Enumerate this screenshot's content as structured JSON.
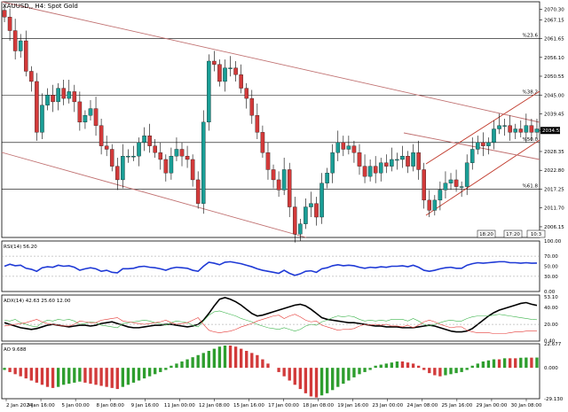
{
  "title": "XAUUSD,, H4:  Spot Gold",
  "colors": {
    "bull": "#1a9e96",
    "bear": "#d23a3a",
    "channel": "#c0392b",
    "channel_light": "#c07070",
    "level": "#000000",
    "rsi": "#1f3ad6",
    "adx": "#000000",
    "plus_di": "#3cb44b",
    "minus_di": "#e53935",
    "ao_up": "#2e9e2e",
    "ao_down": "#d23a3a",
    "price_tag_bg": "#000000",
    "price_tag_text": "#ffffff"
  },
  "chart_data": [
    {
      "type": "candlestick",
      "title": "XAUUSD,, H4:  Spot Gold",
      "ylim": [
        2003.0,
        2072.5
      ],
      "y_ticks": [
        "2070.30",
        "2067.15",
        "2061.65",
        "2056.10",
        "2050.55",
        "2045.00",
        "2039.45",
        "2034.55",
        "2028.35",
        "2022.80",
        "2017.25",
        "2011.70",
        "2006.15"
      ],
      "current_price": "2034.55",
      "x_ticks": [
        "2 Jan 2024",
        "3 Jan 16:00",
        "5 Jan 00:00",
        "8 Jan 08:00",
        "9 Jan 16:00",
        "11 Jan 00:00",
        "12 Jan 08:00",
        "15 Jan 16:00",
        "17 Jan 00:00",
        "18 Jan 08:00",
        "19 Jan 16:00",
        "23 Jan 00:00",
        "24 Jan 08:00",
        "25 Jan 16:00",
        "29 Jan 00:00",
        "30 Jan 08:00"
      ],
      "horizontal_levels": [
        {
          "label": "%23.6",
          "price": 2061.65
        },
        {
          "label": "%38.2",
          "price": 2045.0
        },
        {
          "label": "%50.0",
          "price": 2031.0
        },
        {
          "label": "%61.8",
          "price": 2017.25
        }
      ],
      "time_markers": [
        "18:20",
        "17:20",
        "10:3"
      ],
      "closes": [
        2068,
        2064,
        2058,
        2061,
        2052,
        2049,
        2034,
        2042,
        2045,
        2043,
        2047,
        2044,
        2046,
        2043,
        2037,
        2039,
        2041,
        2036,
        2030,
        2029,
        2024,
        2020,
        2027,
        2027,
        2027,
        2031,
        2033,
        2030,
        2028,
        2026,
        2022,
        2027,
        2029,
        2027,
        2026,
        2020,
        2013,
        2037,
        2055,
        2054,
        2049,
        2053,
        2053,
        2051,
        2047,
        2044,
        2039,
        2034,
        2028,
        2023,
        2020,
        2017,
        2023,
        2012,
        2004,
        2007,
        2012,
        2013,
        2009,
        2019,
        2022,
        2028,
        2031,
        2029,
        2030,
        2028,
        2024,
        2021,
        2024,
        2022,
        2025,
        2024,
        2026,
        2026,
        2027,
        2024,
        2028,
        2023,
        2014,
        2011,
        2014,
        2017,
        2019,
        2020,
        2018,
        2018,
        2025,
        2029,
        2031,
        2030,
        2031,
        2035,
        2036,
        2036,
        2034,
        2035,
        2034,
        2036,
        2034,
        2035
      ]
    },
    {
      "type": "line",
      "title": "RSI(14) 56.20",
      "ylim": [
        0,
        100
      ],
      "y_ticks": [
        "100.00",
        "70.00",
        "50.00",
        "30.00",
        "0.00"
      ],
      "series": [
        {
          "name": "RSI(14)",
          "values": [
            50,
            54,
            51,
            52,
            46,
            44,
            40,
            47,
            49,
            48,
            52,
            50,
            51,
            48,
            42,
            45,
            47,
            45,
            40,
            42,
            38,
            37,
            45,
            45,
            46,
            49,
            50,
            48,
            47,
            45,
            42,
            46,
            48,
            47,
            46,
            42,
            40,
            50,
            58,
            56,
            53,
            58,
            59,
            57,
            55,
            52,
            49,
            45,
            42,
            40,
            38,
            36,
            42,
            36,
            32,
            35,
            40,
            41,
            38,
            45,
            47,
            51,
            53,
            51,
            52,
            51,
            48,
            46,
            48,
            47,
            49,
            48,
            50,
            50,
            51,
            49,
            52,
            48,
            42,
            40,
            42,
            45,
            47,
            48,
            46,
            46,
            52,
            55,
            57,
            56,
            57,
            58,
            59,
            59,
            57,
            57,
            56,
            57,
            56,
            56.2
          ]
        }
      ]
    },
    {
      "type": "line",
      "title": "ADX(14) 42.63 25.60 12.00",
      "ylim": [
        0,
        55
      ],
      "y_ticks": [
        "53.10",
        "40.00",
        "20.00",
        "0.40"
      ],
      "series": [
        {
          "name": "ADX(14)",
          "values": [
            22,
            20,
            18,
            16,
            15,
            14,
            15,
            17,
            19,
            20,
            19,
            18,
            17,
            18,
            19,
            19,
            18,
            19,
            21,
            22,
            23,
            21,
            19,
            17,
            16,
            16,
            17,
            18,
            19,
            19,
            20,
            20,
            19,
            18,
            17,
            18,
            20,
            25,
            33,
            42,
            50,
            52,
            50,
            47,
            43,
            38,
            33,
            30,
            31,
            33,
            35,
            37,
            39,
            41,
            43,
            44,
            42,
            38,
            33,
            28,
            26,
            25,
            24,
            23,
            22,
            22,
            21,
            20,
            19,
            18,
            18,
            17,
            17,
            17,
            16,
            16,
            16,
            17,
            18,
            19,
            18,
            16,
            14,
            12,
            11,
            11,
            12,
            15,
            20,
            25,
            30,
            34,
            37,
            39,
            41,
            43,
            45,
            46,
            44,
            42.63
          ]
        },
        {
          "name": "+DI",
          "values": [
            25,
            24,
            26,
            22,
            20,
            18,
            17,
            22,
            25,
            24,
            26,
            25,
            26,
            24,
            20,
            21,
            23,
            22,
            19,
            18,
            17,
            16,
            21,
            22,
            23,
            24,
            25,
            24,
            22,
            21,
            19,
            22,
            24,
            23,
            22,
            19,
            17,
            24,
            31,
            35,
            36,
            34,
            32,
            30,
            27,
            25,
            23,
            20,
            18,
            16,
            15,
            14,
            16,
            14,
            12,
            14,
            18,
            20,
            19,
            23,
            25,
            28,
            30,
            29,
            30,
            29,
            26,
            24,
            25,
            24,
            25,
            24,
            26,
            26,
            26,
            24,
            27,
            24,
            20,
            18,
            20,
            22,
            24,
            25,
            24,
            24,
            27,
            29,
            30,
            30,
            30,
            31,
            32,
            31,
            30,
            29,
            28,
            27,
            26,
            25.6
          ]
        },
        {
          "name": "-DI",
          "values": [
            18,
            19,
            20,
            21,
            22,
            24,
            26,
            23,
            21,
            20,
            19,
            18,
            18,
            20,
            24,
            23,
            22,
            22,
            25,
            26,
            27,
            28,
            24,
            23,
            22,
            21,
            20,
            21,
            22,
            23,
            25,
            22,
            20,
            21,
            22,
            25,
            28,
            20,
            13,
            11,
            10,
            11,
            12,
            14,
            17,
            19,
            21,
            24,
            26,
            28,
            30,
            31,
            27,
            30,
            32,
            29,
            25,
            23,
            24,
            19,
            17,
            15,
            13,
            14,
            14,
            15,
            18,
            20,
            19,
            20,
            19,
            20,
            18,
            18,
            17,
            19,
            16,
            19,
            23,
            25,
            23,
            20,
            18,
            16,
            17,
            17,
            13,
            11,
            10,
            10,
            10,
            9,
            9,
            9,
            10,
            11,
            11,
            12,
            12,
            12
          ]
        }
      ]
    },
    {
      "type": "bar",
      "title": "AO 9.688",
      "ylim": [
        -29.13,
        22.677
      ],
      "y_ticks": [
        "22.677",
        "0.000",
        "-29.130"
      ],
      "values": [
        -2,
        -4,
        -6,
        -8,
        -10,
        -12,
        -14,
        -16,
        -18,
        -19,
        -18,
        -16,
        -15,
        -14,
        -13,
        -14,
        -15,
        -16,
        -17,
        -18,
        -19,
        -20,
        -18,
        -16,
        -14,
        -12,
        -10,
        -8,
        -6,
        -4,
        -2,
        2,
        4,
        6,
        8,
        10,
        12,
        14,
        16,
        18,
        20,
        21,
        21,
        20,
        18,
        16,
        14,
        12,
        8,
        4,
        0,
        -4,
        -8,
        -12,
        -16,
        -20,
        -24,
        -27,
        -28,
        -26,
        -24,
        -21,
        -18,
        -15,
        -12,
        -9,
        -6,
        -4,
        -2,
        2,
        3,
        4,
        5,
        6,
        6,
        5,
        4,
        2,
        -2,
        -5,
        -7,
        -8,
        -7,
        -6,
        -5,
        -4,
        -2,
        2,
        4,
        6,
        7,
        8,
        8,
        9,
        9,
        9,
        9.5,
        9.7,
        9.6,
        9.688
      ]
    }
  ]
}
